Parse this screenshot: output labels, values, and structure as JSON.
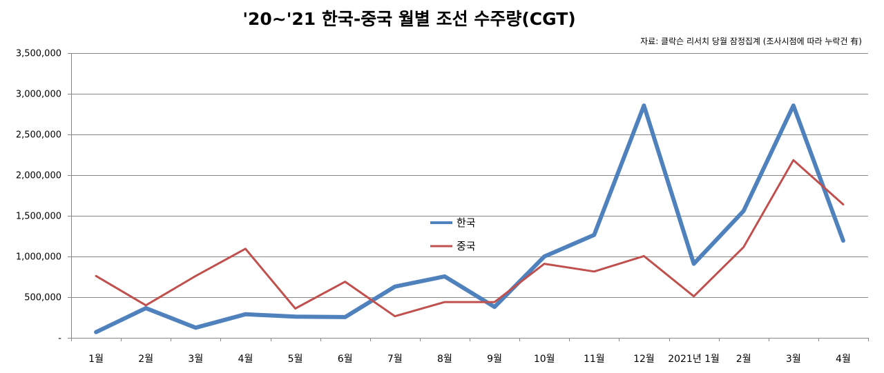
{
  "chart_data": {
    "type": "line",
    "title": "'20~'21 한국-중국 월별 조선 수주량(CGT)",
    "subtitle": "자료: 클락슨 리서치 당월 잠정집계 (조사시점에 따라 누락건 有)",
    "xlabel": "",
    "ylabel": "",
    "categories": [
      "1월",
      "2월",
      "3월",
      "4월",
      "5월",
      "6월",
      "7월",
      "8월",
      "9월",
      "10월",
      "11월",
      "12월",
      "2021년 1월",
      "2월",
      "3월",
      "4월"
    ],
    "ylim": [
      0,
      3500000
    ],
    "yticks": [
      0,
      500000,
      1000000,
      1500000,
      2000000,
      2500000,
      3000000,
      3500000
    ],
    "ytick_labels": [
      "-",
      "500,000",
      "1,000,000",
      "1,500,000",
      "2,000,000",
      "2,500,000",
      "3,000,000",
      "3,500,000"
    ],
    "grid": true,
    "legend_position": "center",
    "series": [
      {
        "name": "한국",
        "color": "#4F81BD",
        "values": [
          70000,
          365000,
          125000,
          290000,
          260000,
          255000,
          630000,
          755000,
          380000,
          1000000,
          1265000,
          2855000,
          910000,
          1560000,
          2855000,
          1195000
        ]
      },
      {
        "name": "중국",
        "color": "#C0504D",
        "values": [
          760000,
          400000,
          760000,
          1095000,
          360000,
          690000,
          265000,
          440000,
          440000,
          910000,
          815000,
          1005000,
          510000,
          1115000,
          2185000,
          1640000
        ]
      }
    ]
  }
}
